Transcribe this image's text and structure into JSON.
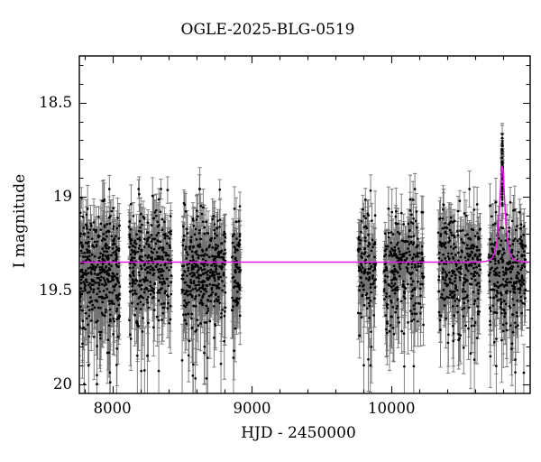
{
  "chart_data": {
    "type": "scatter",
    "title": "OGLE-2025-BLG-0519",
    "xlabel": "HJD - 2450000",
    "ylabel": "I magnitude",
    "xlim": [
      7763,
      10993
    ],
    "ylim": [
      20.05,
      18.25
    ],
    "y_axis_inverted_magnitudes": true,
    "x_major_ticks": [
      8000,
      9000,
      10000
    ],
    "x_minor_tick_step": 200,
    "y_major_ticks": [
      18.5,
      19,
      19.5,
      20
    ],
    "y_minor_tick_step": 0.1,
    "grid": false,
    "legend_position": "none",
    "background_color": "#ffffff",
    "point_color": "#000000",
    "errorbar_alpha": 0.55,
    "baseline_mag": 19.35,
    "model_curve": {
      "shape": "paczynski",
      "color": "#e619e6",
      "baseline_mag": 19.35,
      "peak_mag": 18.85,
      "t0": 10793,
      "tE": 27,
      "u0": 0.75
    },
    "event": {
      "peak_time_hjd": 10793,
      "peak_data_mag": 18.67,
      "column_mag_range": [
        18.67,
        19.05
      ],
      "n_column_points": 26,
      "n_wing_points": 30
    },
    "seasons": [
      {
        "t_range": [
          7763,
          8054
        ],
        "n_points": 400,
        "mag_mean": 19.38,
        "mag_sigma": 0.15,
        "faint_limit": 20.0
      },
      {
        "t_range": [
          8118,
          8422
        ],
        "n_points": 330,
        "mag_mean": 19.37,
        "mag_sigma": 0.14,
        "faint_limit": 19.93
      },
      {
        "t_range": [
          8499,
          8809
        ],
        "n_points": 380,
        "mag_mean": 19.38,
        "mag_sigma": 0.15,
        "faint_limit": 19.97
      },
      {
        "t_range": [
          8855,
          8919
        ],
        "n_points": 80,
        "mag_mean": 19.36,
        "mag_sigma": 0.14,
        "faint_limit": 19.86
      },
      {
        "t_range": [
          9759,
          9888
        ],
        "n_points": 130,
        "mag_mean": 19.37,
        "mag_sigma": 0.14,
        "faint_limit": 19.9
      },
      {
        "t_range": [
          9946,
          10231
        ],
        "n_points": 270,
        "mag_mean": 19.37,
        "mag_sigma": 0.14,
        "faint_limit": 19.93
      },
      {
        "t_range": [
          10334,
          10638
        ],
        "n_points": 310,
        "mag_mean": 19.37,
        "mag_sigma": 0.14,
        "faint_limit": 19.9
      },
      {
        "t_range": [
          10696,
          10961
        ],
        "n_points": 290,
        "mag_mean": 19.38,
        "mag_sigma": 0.15,
        "faint_limit": 19.98
      }
    ]
  }
}
